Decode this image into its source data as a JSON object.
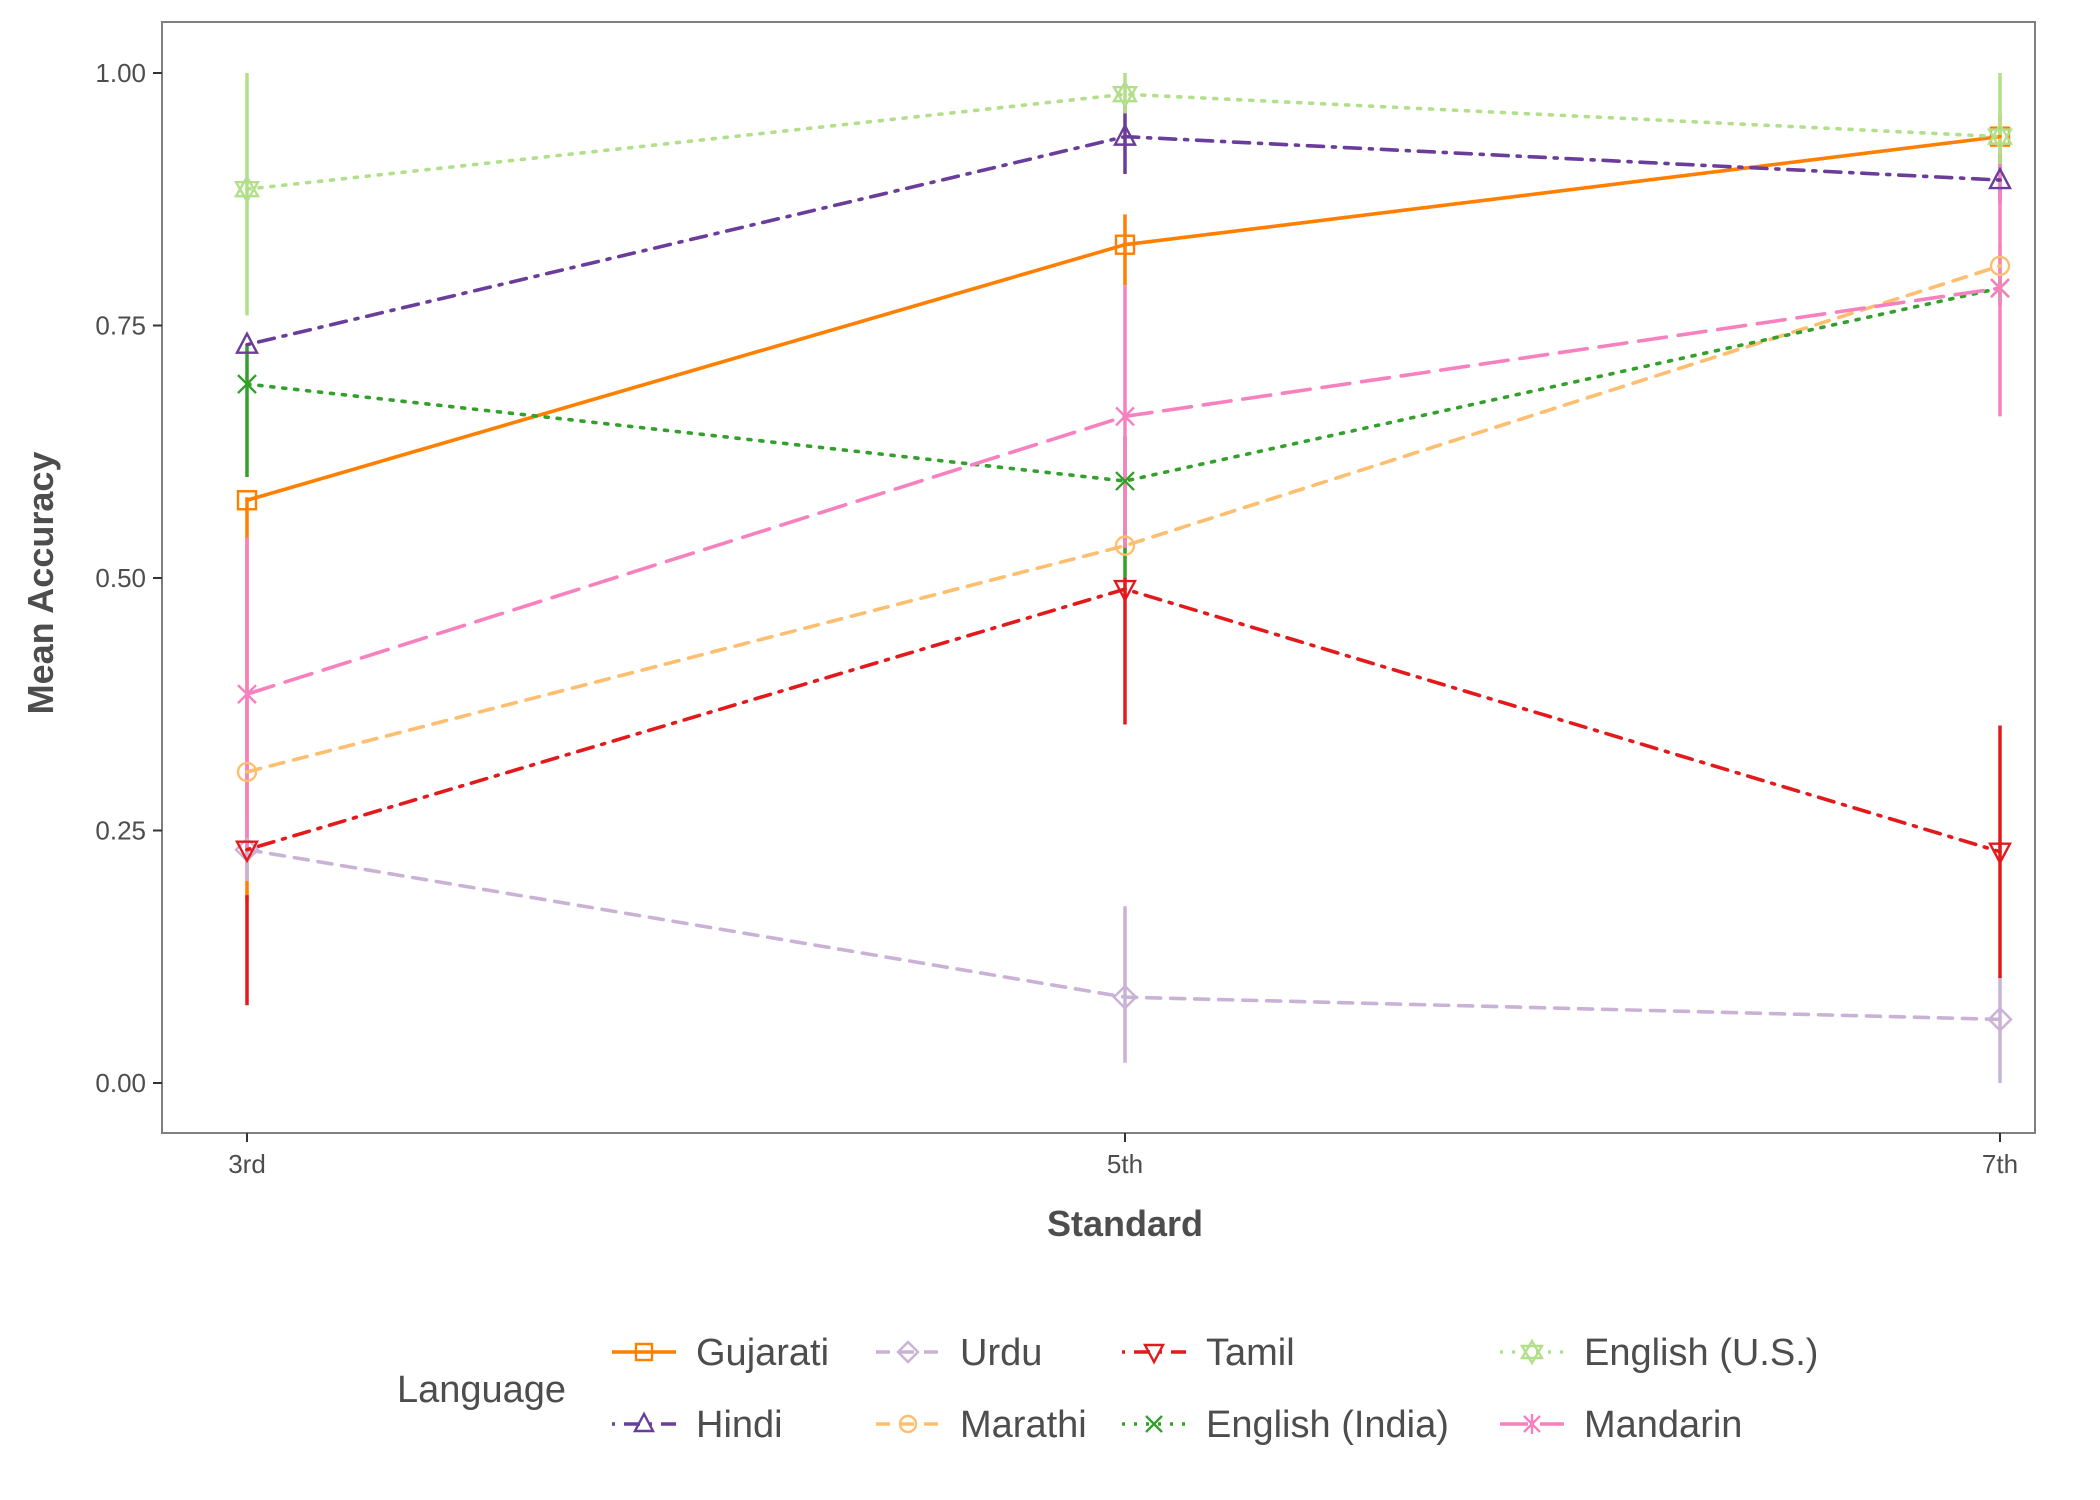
{
  "chart_data": {
    "type": "line",
    "xlabel": "Standard",
    "ylabel": "Mean Accuracy",
    "categories": [
      "3rd",
      "5th",
      "7th"
    ],
    "ylim": [
      -0.05,
      1.05
    ],
    "y_ticks": [
      "0.00",
      "0.25",
      "0.50",
      "0.75",
      "1.00"
    ],
    "y_tick_values": [
      0,
      0.25,
      0.5,
      0.75,
      1.0
    ],
    "grid": false,
    "legend": {
      "title": "Language",
      "placement": "bottom"
    },
    "series": [
      {
        "name": "Gujarati",
        "color": "#ff7f00",
        "dash": "solid",
        "marker": "square",
        "values": [
          0.577,
          0.83,
          0.937
        ],
        "err_low": [
          0.18,
          0.79,
          0.91
        ],
        "err_high": [
          0.58,
          0.86,
          0.96
        ]
      },
      {
        "name": "Hindi",
        "color": "#6a3d9a",
        "dash": "dotdash",
        "marker": "triangle-up",
        "values": [
          0.731,
          0.937,
          0.894
        ],
        "err_low": [
          0.73,
          0.9,
          0.87
        ],
        "err_high": [
          0.73,
          0.97,
          0.92
        ]
      },
      {
        "name": "Urdu",
        "color": "#cab2d6",
        "dash": "dashed",
        "marker": "diamond",
        "values": [
          0.231,
          0.085,
          0.063
        ],
        "err_low": [
          0.2,
          0.02,
          0.0
        ],
        "err_high": [
          0.26,
          0.175,
          0.105
        ]
      },
      {
        "name": "Marathi",
        "color": "#fdbf6f",
        "dash": "dashed",
        "marker": "circle",
        "values": [
          0.308,
          0.532,
          0.809
        ],
        "err_low": [
          0.3,
          0.52,
          0.79
        ],
        "err_high": [
          0.31,
          0.55,
          0.83
        ]
      },
      {
        "name": "Tamil",
        "color": "#e31a1c",
        "dash": "dotdash",
        "marker": "triangle-down",
        "values": [
          0.231,
          0.489,
          0.229
        ],
        "err_low": [
          0.077,
          0.355,
          0.104
        ],
        "err_high": [
          0.186,
          0.5,
          0.354
        ]
      },
      {
        "name": "English (India)",
        "color": "#33a02c",
        "dash": "dotted",
        "marker": "x",
        "values": [
          0.692,
          0.596,
          0.787
        ],
        "err_low": [
          0.6,
          0.5,
          0.77
        ],
        "err_high": [
          0.73,
          0.64,
          0.8
        ]
      },
      {
        "name": "English (U.S.)",
        "color": "#b2df8a",
        "dash": "dotted",
        "marker": "star",
        "values": [
          0.885,
          0.979,
          0.937
        ],
        "err_low": [
          0.76,
          0.96,
          0.89
        ],
        "err_high": [
          1.0,
          1.0,
          1.0
        ]
      },
      {
        "name": "Mandarin",
        "color": "#f781bf",
        "dash": "longdash",
        "marker": "asterisk",
        "values": [
          0.385,
          0.66,
          0.787
        ],
        "err_low": [
          0.23,
          0.53,
          0.66
        ],
        "err_high": [
          0.54,
          0.79,
          0.91
        ]
      }
    ]
  }
}
